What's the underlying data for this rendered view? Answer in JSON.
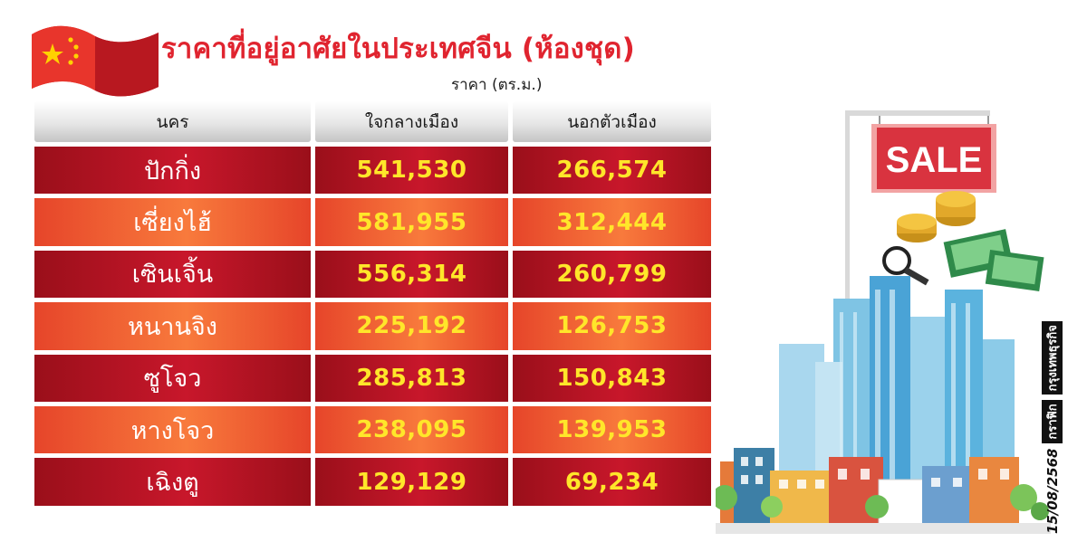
{
  "title": "ราคาที่อยู่อาศัยในประเทศจีน (ห้องชุด)",
  "subtitle": "ราคา (ตร.ม.)",
  "headers": [
    "นคร",
    "ใจกลางเมือง",
    "นอกตัวเมือง"
  ],
  "rows": [
    {
      "city": "ปักกิ่ง",
      "center": "541,530",
      "outer": "266,574"
    },
    {
      "city": "เซี่ยงไฮ้",
      "center": "581,955",
      "outer": "312,444"
    },
    {
      "city": "เซินเจิ้น",
      "center": "556,314",
      "outer": "260,799"
    },
    {
      "city": "หนานจิง",
      "center": "225,192",
      "outer": "126,753"
    },
    {
      "city": "ซูโจว",
      "center": "285,813",
      "outer": "150,843"
    },
    {
      "city": "หางโจว",
      "center": "238,095",
      "outer": "139,953"
    },
    {
      "city": "เฉิงตู",
      "center": "129,129",
      "outer": "69,234"
    }
  ],
  "sign_text": "SALE",
  "credit": {
    "date": "15/08/2568",
    "label": "กราฟิก",
    "brand": "กรุงเทพธุรกิจ"
  },
  "colors": {
    "title": "#e0242f",
    "row_dark": "#c8172b",
    "row_light": "#f87a3c",
    "value": "#ffe62a"
  },
  "chart_data": {
    "type": "table",
    "title": "ราคาที่อยู่อาศัยในประเทศจีน (ห้องชุด)",
    "unit": "ราคา (ตร.ม.)",
    "columns": [
      "นคร",
      "ใจกลางเมือง",
      "นอกตัวเมือง"
    ],
    "categories": [
      "ปักกิ่ง",
      "เซี่ยงไฮ้",
      "เซินเจิ้น",
      "หนานจิง",
      "ซูโจว",
      "หางโจว",
      "เฉิงตู"
    ],
    "series": [
      {
        "name": "ใจกลางเมือง",
        "values": [
          541530,
          581955,
          556314,
          225192,
          285813,
          238095,
          129129
        ]
      },
      {
        "name": "นอกตัวเมือง",
        "values": [
          266574,
          312444,
          260799,
          126753,
          150843,
          139953,
          69234
        ]
      }
    ]
  }
}
